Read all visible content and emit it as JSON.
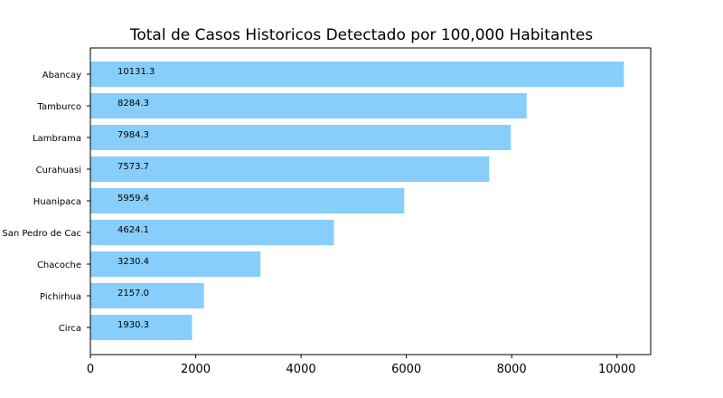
{
  "chart_data": {
    "type": "bar",
    "orientation": "horizontal",
    "title": "Total de Casos Historicos Detectado por 100,000 Habitantes",
    "xlabel": "",
    "ylabel": "",
    "categories": [
      "Abancay",
      "Tamburco",
      "Lambrama",
      "Curahuasi",
      "Huanipaca",
      "San Pedro de Cac",
      "Chacoche",
      "Pichirhua",
      "Circa"
    ],
    "values": [
      10131.3,
      8284.3,
      7984.3,
      7573.7,
      5959.4,
      4624.1,
      3230.4,
      2157.0,
      1930.3
    ],
    "value_labels": [
      "10131.3",
      "8284.3",
      "7984.3",
      "7573.7",
      "5959.4",
      "4624.1",
      "3230.4",
      "2157.0",
      "1930.3"
    ],
    "x_ticks": [
      0,
      2000,
      4000,
      6000,
      8000,
      10000
    ],
    "x_tick_labels": [
      "0",
      "2000",
      "4000",
      "6000",
      "8000",
      "10000"
    ],
    "xlim": [
      0,
      10640
    ],
    "bar_color": "#87cefa",
    "grid": false,
    "legend": "none"
  }
}
